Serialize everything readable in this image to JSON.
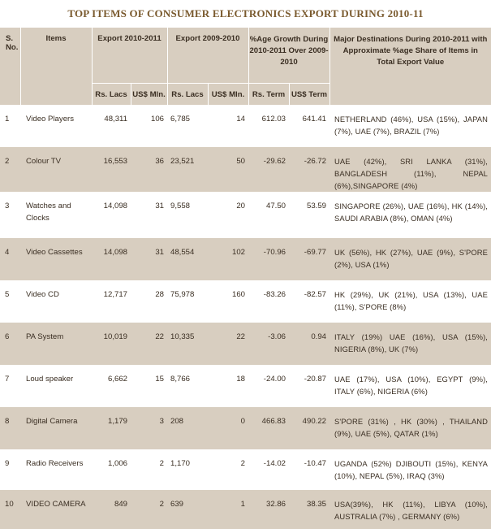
{
  "title": "TOP ITEMS OF CONSUMER ELECTRONICS EXPORT DURING 2010-11",
  "headers": {
    "sno": "S. No.",
    "items": "Items",
    "export_2010_2011": "Export 2010-2011",
    "export_2009_2010": "Export 2009-2010",
    "growth": "%Age Growth During 2010-2011 Over 2009-2010",
    "destinations": "Major Destinations During 2010-2011 with Approximate %age Share of Items in Total Export Value",
    "rs_lacs_1": "Rs. Lacs",
    "usd_mln_1": "US$ Mln.",
    "rs_lacs_2": "Rs. Lacs",
    "usd_mln_2": "US$ Mln.",
    "rs_term": "Rs. Term",
    "usd_term": "US$ Term"
  },
  "rows": [
    {
      "sno": "1",
      "item": "Video Players",
      "rs_2010": "48,311",
      "usd_2010": "106",
      "rs_2009": "6,785",
      "usd_2009": "14",
      "rs_term": "612.03",
      "usd_term": "641.41",
      "destinations": "NETHERLAND (46%), USA (15%), JAPAN (7%), UAE (7%), BRAZIL (7%)"
    },
    {
      "sno": "2",
      "item": "Colour TV",
      "rs_2010": "16,553",
      "usd_2010": "36",
      "rs_2009": "23,521",
      "usd_2009": "50",
      "rs_term": "-29.62",
      "usd_term": "-26.72",
      "destinations": "UAE (42%), SRI LANKA (31%), BANGLADESH (11%), NEPAL (6%),SINGAPORE (4%)"
    },
    {
      "sno": "3",
      "item": "Watches and Clocks",
      "rs_2010": "14,098",
      "usd_2010": "31",
      "rs_2009": "9,558",
      "usd_2009": "20",
      "rs_term": "47.50",
      "usd_term": "53.59",
      "destinations": "SINGAPORE (26%), UAE (16%), HK (14%), SAUDI ARABIA (8%), OMAN (4%)"
    },
    {
      "sno": "4",
      "item": "Video Cassettes",
      "rs_2010": "14,098",
      "usd_2010": "31",
      "rs_2009": "48,554",
      "usd_2009": "102",
      "rs_term": "-70.96",
      "usd_term": "-69.77",
      "destinations": "UK (56%), HK (27%), UAE (9%), S'PORE (2%), USA (1%)"
    },
    {
      "sno": "5",
      "item": "Video CD",
      "rs_2010": "12,717",
      "usd_2010": "28",
      "rs_2009": "75,978",
      "usd_2009": "160",
      "rs_term": "-83.26",
      "usd_term": "-82.57",
      "destinations": "HK (29%), UK (21%), USA (13%), UAE (11%), S'PORE (8%)"
    },
    {
      "sno": "6",
      "item": "PA System",
      "rs_2010": "10,019",
      "usd_2010": "22",
      "rs_2009": "10,335",
      "usd_2009": "22",
      "rs_term": "-3.06",
      "usd_term": "0.94",
      "destinations": "ITALY (19%) UAE (16%), USA (15%), NIGERIA (8%), UK (7%)"
    },
    {
      "sno": "7",
      "item": "Loud speaker",
      "rs_2010": "6,662",
      "usd_2010": "15",
      "rs_2009": "8,766",
      "usd_2009": "18",
      "rs_term": "-24.00",
      "usd_term": "-20.87",
      "destinations": "UAE (17%), USA (10%), EGYPT (9%), ITALY (6%), NIGERIA (6%)"
    },
    {
      "sno": "8",
      "item": "Digital Camera",
      "rs_2010": "1,179",
      "usd_2010": "3",
      "rs_2009": "208",
      "usd_2009": "0",
      "rs_term": "466.83",
      "usd_term": "490.22",
      "destinations": "S'PORE (31%) , HK (30%) , THAILAND (9%), UAE (5%), QATAR (1%)"
    },
    {
      "sno": "9",
      "item": "Radio Receivers",
      "rs_2010": "1,006",
      "usd_2010": "2",
      "rs_2009": "1,170",
      "usd_2009": "2",
      "rs_term": "-14.02",
      "usd_term": "-10.47",
      "destinations": "UGANDA (52%) DJIBOUTI (15%), KENYA (10%), NEPAL (5%), IRAQ (3%)"
    },
    {
      "sno": "10",
      "item": "VIDEO CAMERA",
      "rs_2010": "849",
      "usd_2010": "2",
      "rs_2009": "639",
      "usd_2009": "1",
      "rs_term": "32.86",
      "usd_term": "38.35",
      "destinations": "USA(39%), HK (11%), LIBYA (10%), AUSTRALIA (7%) , GERMANY (6%)"
    }
  ]
}
